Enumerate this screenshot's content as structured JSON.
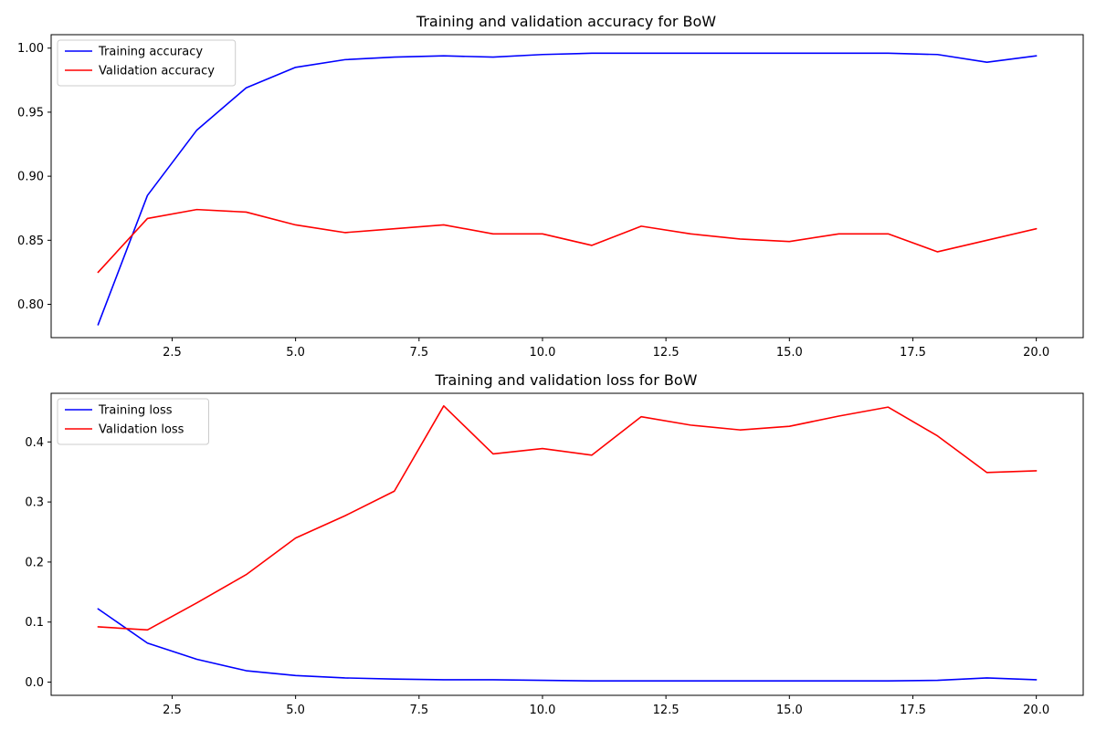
{
  "chart_data": [
    {
      "type": "line",
      "title": "Training and validation accuracy for BoW",
      "xlabel": "",
      "ylabel": "",
      "xlim": [
        0.05,
        20.95
      ],
      "ylim": [
        0.774,
        1.0105
      ],
      "x_ticks": [
        2.5,
        5.0,
        7.5,
        10.0,
        12.5,
        15.0,
        17.5,
        20.0
      ],
      "x_tick_labels": [
        "2.5",
        "5.0",
        "7.5",
        "10.0",
        "12.5",
        "15.0",
        "17.5",
        "20.0"
      ],
      "y_ticks": [
        0.8,
        0.85,
        0.9,
        0.95,
        1.0
      ],
      "y_tick_labels": [
        "0.80",
        "0.85",
        "0.90",
        "0.95",
        "1.00"
      ],
      "grid": false,
      "legend_position": "upper-left",
      "x": [
        1,
        2,
        3,
        4,
        5,
        6,
        7,
        8,
        9,
        10,
        11,
        12,
        13,
        14,
        15,
        16,
        17,
        18,
        19,
        20
      ],
      "series": [
        {
          "name": "Training accuracy",
          "color": "#0000ff",
          "values": [
            0.784,
            0.885,
            0.936,
            0.969,
            0.985,
            0.991,
            0.993,
            0.994,
            0.993,
            0.995,
            0.996,
            0.996,
            0.996,
            0.996,
            0.996,
            0.996,
            0.996,
            0.995,
            0.989,
            0.994
          ]
        },
        {
          "name": "Validation accuracy",
          "color": "#ff0000",
          "values": [
            0.825,
            0.867,
            0.874,
            0.872,
            0.862,
            0.856,
            0.859,
            0.862,
            0.855,
            0.855,
            0.846,
            0.861,
            0.855,
            0.851,
            0.849,
            0.855,
            0.855,
            0.841,
            0.85,
            0.859
          ]
        }
      ]
    },
    {
      "type": "line",
      "title": "Training and validation loss for BoW",
      "xlabel": "",
      "ylabel": "",
      "xlim": [
        0.05,
        20.95
      ],
      "ylim": [
        -0.022,
        0.481
      ],
      "x_ticks": [
        2.5,
        5.0,
        7.5,
        10.0,
        12.5,
        15.0,
        17.5,
        20.0
      ],
      "x_tick_labels": [
        "2.5",
        "5.0",
        "7.5",
        "10.0",
        "12.5",
        "15.0",
        "17.5",
        "20.0"
      ],
      "y_ticks": [
        0.0,
        0.1,
        0.2,
        0.3,
        0.4
      ],
      "y_tick_labels": [
        "0.0",
        "0.1",
        "0.2",
        "0.3",
        "0.4"
      ],
      "grid": false,
      "legend_position": "upper-left",
      "x": [
        1,
        2,
        3,
        4,
        5,
        6,
        7,
        8,
        9,
        10,
        11,
        12,
        13,
        14,
        15,
        16,
        17,
        18,
        19,
        20
      ],
      "series": [
        {
          "name": "Training loss",
          "color": "#0000ff",
          "values": [
            0.122,
            0.065,
            0.038,
            0.019,
            0.011,
            0.007,
            0.005,
            0.004,
            0.004,
            0.003,
            0.002,
            0.002,
            0.002,
            0.002,
            0.002,
            0.002,
            0.002,
            0.003,
            0.007,
            0.004
          ]
        },
        {
          "name": "Validation loss",
          "color": "#ff0000",
          "values": [
            0.092,
            0.087,
            0.132,
            0.179,
            0.24,
            0.277,
            0.318,
            0.46,
            0.38,
            0.389,
            0.378,
            0.442,
            0.428,
            0.42,
            0.426,
            0.443,
            0.458,
            0.41,
            0.349,
            0.352
          ]
        }
      ]
    }
  ]
}
